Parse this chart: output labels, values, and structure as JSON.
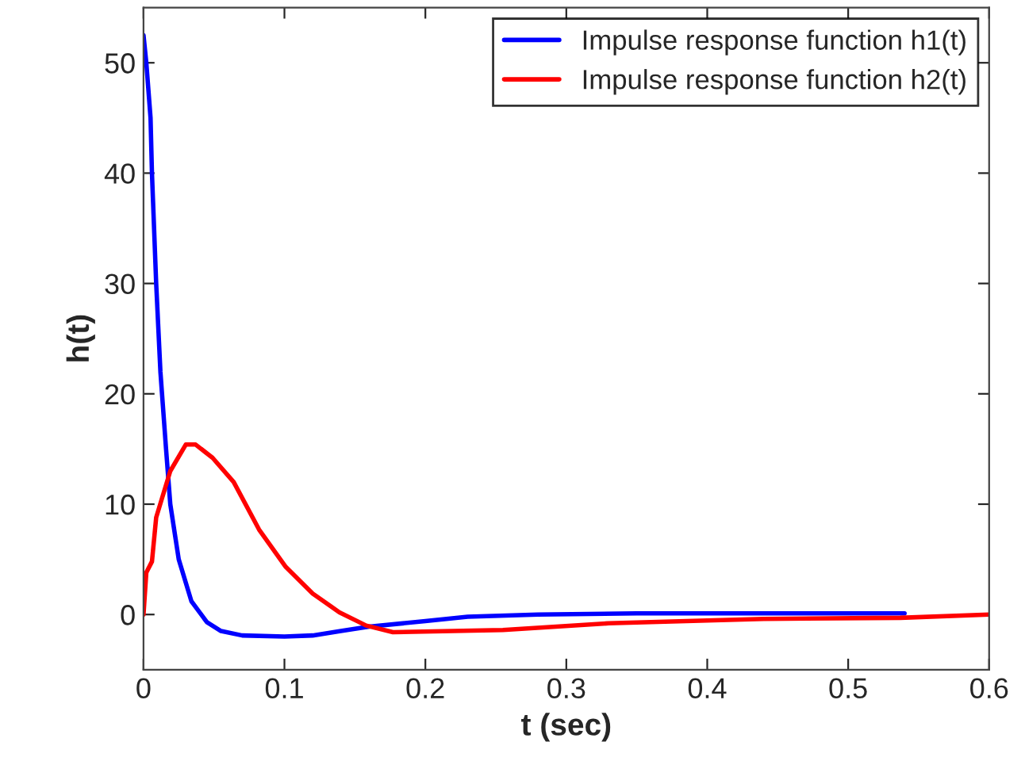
{
  "chart_data": {
    "type": "line",
    "xlabel": "t (sec)",
    "ylabel": "h(t)",
    "xlim": [
      0,
      0.6
    ],
    "ylim": [
      -5,
      55
    ],
    "xticks": [
      0,
      0.1,
      0.2,
      0.3,
      0.4,
      0.5,
      0.6
    ],
    "yticks": [
      0,
      10,
      20,
      30,
      40,
      50
    ],
    "grid": false,
    "legend": "top right",
    "marker": "none",
    "line_style": "solid",
    "series": [
      {
        "name": "Impulse response function h1(t)",
        "color": "#0000ff",
        "x": [
          0,
          0.002,
          0.005,
          0.006,
          0.009,
          0.012,
          0.016,
          0.019,
          0.025,
          0.034,
          0.045,
          0.055,
          0.07,
          0.1,
          0.12,
          0.14,
          0.16,
          0.2,
          0.23,
          0.28,
          0.35,
          0.45,
          0.54
        ],
        "values": [
          52.5,
          50,
          45,
          40,
          30,
          22,
          15,
          10,
          5,
          1.2,
          -0.7,
          -1.5,
          -1.9,
          -2.0,
          -1.9,
          -1.5,
          -1.1,
          -0.6,
          -0.2,
          0,
          0.1,
          0.1,
          0.1
        ]
      },
      {
        "name": "Impulse response function h2(t)",
        "color": "#ff0000",
        "x": [
          0,
          0.002,
          0.006,
          0.009,
          0.019,
          0.03,
          0.037,
          0.049,
          0.064,
          0.082,
          0.101,
          0.12,
          0.139,
          0.158,
          0.177,
          0.255,
          0.33,
          0.44,
          0.537,
          0.6
        ],
        "values": [
          0,
          3.8,
          4.8,
          8.8,
          13,
          15.4,
          15.4,
          14.2,
          12,
          7.7,
          4.3,
          1.9,
          0.2,
          -1,
          -1.6,
          -1.4,
          -0.8,
          -0.4,
          -0.3,
          0
        ]
      }
    ]
  }
}
